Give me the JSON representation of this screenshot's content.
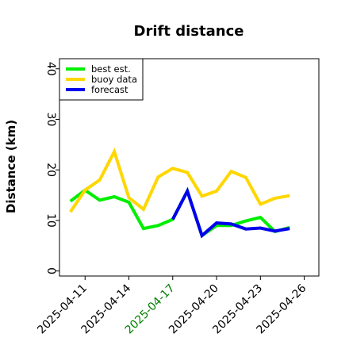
{
  "chart_data": {
    "type": "line",
    "title": "Drift distance",
    "ylabel": "Distance (km)",
    "xlabel": "",
    "ylim": [
      -1,
      42
    ],
    "yticks": [
      0,
      10,
      20,
      30,
      40
    ],
    "xlim": [
      "2025-04-09T06:00",
      "2025-04-27T00:00"
    ],
    "x_axis_type": "date",
    "xticks": [
      {
        "label": "2025-04-11",
        "date": "2025-04-11",
        "color": "#000000"
      },
      {
        "label": "2025-04-14",
        "date": "2025-04-14",
        "color": "#000000"
      },
      {
        "label": "2025-04-17",
        "date": "2025-04-17",
        "color": "#008000"
      },
      {
        "label": "2025-04-20",
        "date": "2025-04-20",
        "color": "#000000"
      },
      {
        "label": "2025-04-23",
        "date": "2025-04-23",
        "color": "#000000"
      },
      {
        "label": "2025-04-26",
        "date": "2025-04-26",
        "color": "#000000"
      }
    ],
    "legend_position": "top-left",
    "grid": false,
    "series": [
      {
        "name": "best est.",
        "color": "#00ee00",
        "points": [
          [
            "2025-04-10",
            13.8
          ],
          [
            "2025-04-11",
            16.0
          ],
          [
            "2025-04-12",
            14.0
          ],
          [
            "2025-04-13",
            14.7
          ],
          [
            "2025-04-14",
            13.6
          ],
          [
            "2025-04-15",
            8.4
          ],
          [
            "2025-04-16",
            9.0
          ],
          [
            "2025-04-17",
            10.2
          ],
          [
            "2025-04-18",
            15.8
          ],
          [
            "2025-04-19",
            7.0
          ],
          [
            "2025-04-20",
            9.0
          ],
          [
            "2025-04-21",
            9.0
          ],
          [
            "2025-04-22",
            9.9
          ],
          [
            "2025-04-23",
            10.6
          ],
          [
            "2025-04-24",
            7.8
          ],
          [
            "2025-04-25",
            8.6
          ]
        ]
      },
      {
        "name": "buoy data",
        "color": "#ffd700",
        "points": [
          [
            "2025-04-10",
            11.7
          ],
          [
            "2025-04-11",
            16.0
          ],
          [
            "2025-04-12",
            18.0
          ],
          [
            "2025-04-13",
            23.6
          ],
          [
            "2025-04-14",
            14.5
          ],
          [
            "2025-04-15",
            12.2
          ],
          [
            "2025-04-16",
            18.6
          ],
          [
            "2025-04-17",
            20.3
          ],
          [
            "2025-04-18",
            19.5
          ],
          [
            "2025-04-19",
            14.8
          ],
          [
            "2025-04-20",
            15.8
          ],
          [
            "2025-04-21",
            19.7
          ],
          [
            "2025-04-22",
            18.5
          ],
          [
            "2025-04-23",
            13.2
          ],
          [
            "2025-04-24",
            14.4
          ],
          [
            "2025-04-25",
            14.9
          ]
        ]
      },
      {
        "name": "forecast",
        "color": "#0000ee",
        "points": [
          [
            "2025-04-17",
            10.2
          ],
          [
            "2025-04-18",
            15.8
          ],
          [
            "2025-04-19",
            7.0
          ],
          [
            "2025-04-20",
            9.5
          ],
          [
            "2025-04-21",
            9.3
          ],
          [
            "2025-04-22",
            8.3
          ],
          [
            "2025-04-23",
            8.5
          ],
          [
            "2025-04-24",
            7.9
          ],
          [
            "2025-04-25",
            8.4
          ]
        ]
      }
    ]
  }
}
